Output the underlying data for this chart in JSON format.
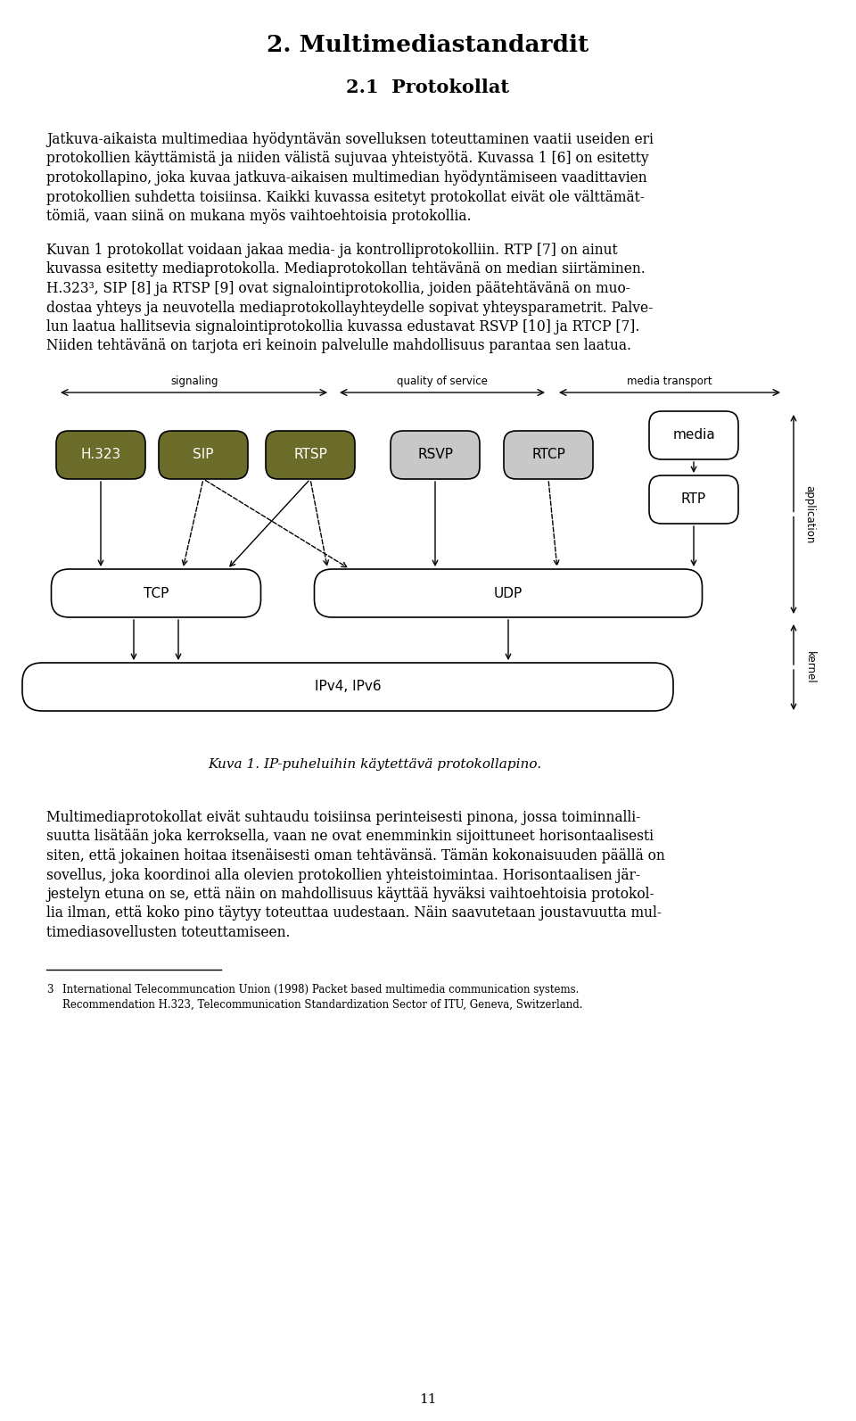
{
  "title": "2. Multimediastandardit",
  "subtitle": "2.1  Protokollat",
  "para1_lines": [
    "Jatkuva-aikaista multimediaa hyödyntävän sovelluksen toteuttaminen vaatii useiden eri",
    "protokollien käyttämistä ja niiden välistä sujuvaa yhteistyötä. Kuvassa 1 [6] on esitetty",
    "protokollapino, joka kuvaa jatkuva-aikaisen multimedian hyödyntämiseen vaadittavien",
    "protokollien suhdetta toisiinsa. Kaikki kuvassa esitetyt protokollat eivät ole välttämät-",
    "tömiä, vaan siinä on mukana myös vaihtoehtoisia protokollia."
  ],
  "para2_lines": [
    "Kuvan 1 protokollat voidaan jakaa media- ja kontrolliprotokolliin. RTP [7] on ainut",
    "kuvassa esitetty mediaprotokolla. Mediaprotokollan tehtävänä on median siirtäminen.",
    "H.323³, SIP [8] ja RTSP [9] ovat signalointiprotokollia, joiden päätehtävänä on muo-",
    "dostaa yhteys ja neuvotella mediaprotokollayhteydelle sopivat yhteysparametrit. Palve-",
    "lun laatua hallitsevia signalointiprotokollia kuvassa edustavat RSVP [10] ja RTCP [7].",
    "Niiden tehtävänä on tarjota eri keinoin palvelulle mahdollisuus parantaa sen laatua."
  ],
  "para3_lines": [
    "Multimediaprotokollat eivät suhtaudu toisiinsa perinteisesti pinona, jossa toiminnalli-",
    "suutta lisätään joka kerroksella, vaan ne ovat enemminkin sijoittuneet horisontaalisesti",
    "siten, että jokainen hoitaa itsenäisesti oman tehtävänsä. Tämän kokonaisuuden päällä on",
    "sovellus, joka koordinoi alla olevien protokollien yhteistoimintaa. Horisontaalisen jär-",
    "jestelyn etuna on se, että näin on mahdollisuus käyttää hyväksi vaihtoehtoisia protokol-",
    "lia ilman, että koko pino täytyy toteuttaa uudestaan. Näin saavutetaan joustavuutta mul-",
    "timediasovellusten toteuttamiseen."
  ],
  "figure_caption": "Kuva 1. IP-puheluihin käytettävä protokollapino.",
  "footnote_num": "3",
  "fn_line1": "International Telecommuncation Union (1998) Packet based multimedia communication systems.",
  "fn_line2": "Recommendation H.323, Telecommunication Standardization Sector of ITU, Geneva, Switzerland.",
  "page_number": "11",
  "olive_color": "#6B6B2A",
  "lgray_color": "#C8C8C8",
  "white_color": "#FFFFFF",
  "bg_color": "#FFFFFF"
}
